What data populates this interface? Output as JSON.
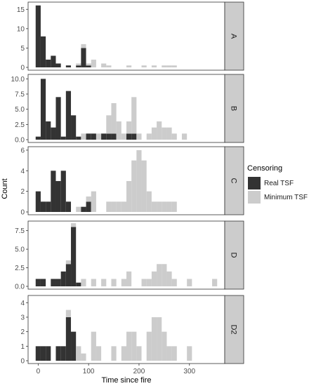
{
  "chart_data": {
    "type": "bar",
    "xlabel": "Time since fire",
    "ylabel": "Count",
    "xlim": [
      -20,
      370
    ],
    "x_ticks": [
      0,
      100,
      200,
      300
    ],
    "bin_width": 10,
    "legend": {
      "title": "Censoring",
      "position": "right",
      "items": [
        {
          "name": "Real TSF",
          "color": "#333333"
        },
        {
          "name": "Minimum TSF",
          "color": "#cccccc"
        }
      ]
    },
    "panels": [
      {
        "label": "A",
        "ylim": [
          0,
          16.5
        ],
        "y_ticks": [
          0,
          5,
          10,
          15
        ],
        "bars": [
          {
            "x": 0,
            "real": 16,
            "min": 0
          },
          {
            "x": 10,
            "real": 8,
            "min": 0
          },
          {
            "x": 20,
            "real": 2,
            "min": 0
          },
          {
            "x": 30,
            "real": 3,
            "min": 0
          },
          {
            "x": 40,
            "real": 1,
            "min": 0
          },
          {
            "x": 60,
            "real": 0.5,
            "min": 0
          },
          {
            "x": 80,
            "real": 0.5,
            "min": 0.5
          },
          {
            "x": 90,
            "real": 5,
            "min": 1
          },
          {
            "x": 100,
            "real": 0.5,
            "min": 0.5
          },
          {
            "x": 110,
            "real": 0,
            "min": 2
          },
          {
            "x": 130,
            "real": 0,
            "min": 1
          },
          {
            "x": 140,
            "real": 0,
            "min": 0.5
          },
          {
            "x": 180,
            "real": 0,
            "min": 0.5
          },
          {
            "x": 210,
            "real": 0,
            "min": 0.5
          },
          {
            "x": 230,
            "real": 0,
            "min": 0.5
          },
          {
            "x": 250,
            "real": 0,
            "min": 0.5
          },
          {
            "x": 260,
            "real": 0,
            "min": 0.5
          },
          {
            "x": 270,
            "real": 0,
            "min": 0.5
          }
        ]
      },
      {
        "label": "B",
        "ylim": [
          0,
          10.5
        ],
        "y_ticks": [
          0.0,
          2.5,
          5.0,
          7.5,
          10.0
        ],
        "bars": [
          {
            "x": 0,
            "real": 0.5,
            "min": 0
          },
          {
            "x": 10,
            "real": 10,
            "min": 0
          },
          {
            "x": 20,
            "real": 3,
            "min": 0
          },
          {
            "x": 30,
            "real": 2,
            "min": 0
          },
          {
            "x": 40,
            "real": 7,
            "min": 0
          },
          {
            "x": 50,
            "real": 0.5,
            "min": 0
          },
          {
            "x": 60,
            "real": 8,
            "min": 0
          },
          {
            "x": 70,
            "real": 4,
            "min": 0
          },
          {
            "x": 80,
            "real": 0.5,
            "min": 0
          },
          {
            "x": 90,
            "real": 0,
            "min": 1
          },
          {
            "x": 100,
            "real": 1,
            "min": 0
          },
          {
            "x": 110,
            "real": 1,
            "min": 0
          },
          {
            "x": 120,
            "real": 0,
            "min": 1
          },
          {
            "x": 130,
            "real": 1,
            "min": 0
          },
          {
            "x": 140,
            "real": 1,
            "min": 3
          },
          {
            "x": 150,
            "real": 1,
            "min": 5
          },
          {
            "x": 160,
            "real": 0,
            "min": 3
          },
          {
            "x": 170,
            "real": 0,
            "min": 1
          },
          {
            "x": 180,
            "real": 1,
            "min": 2
          },
          {
            "x": 190,
            "real": 1,
            "min": 6
          },
          {
            "x": 200,
            "real": 0,
            "min": 1
          },
          {
            "x": 220,
            "real": 0,
            "min": 1
          },
          {
            "x": 230,
            "real": 0,
            "min": 2
          },
          {
            "x": 240,
            "real": 0,
            "min": 3
          },
          {
            "x": 250,
            "real": 0,
            "min": 2
          },
          {
            "x": 260,
            "real": 0,
            "min": 2
          },
          {
            "x": 270,
            "real": 0,
            "min": 1
          },
          {
            "x": 290,
            "real": 0,
            "min": 1
          }
        ]
      },
      {
        "label": "C",
        "ylim": [
          0,
          6.2
        ],
        "y_ticks": [
          0,
          2,
          4,
          6
        ],
        "bars": [
          {
            "x": 0,
            "real": 2,
            "min": 0
          },
          {
            "x": 10,
            "real": 1,
            "min": 0
          },
          {
            "x": 20,
            "real": 1,
            "min": 0
          },
          {
            "x": 30,
            "real": 4,
            "min": 0
          },
          {
            "x": 40,
            "real": 3,
            "min": 0
          },
          {
            "x": 50,
            "real": 4,
            "min": 0
          },
          {
            "x": 60,
            "real": 1,
            "min": 0
          },
          {
            "x": 80,
            "real": 0,
            "min": 0.5
          },
          {
            "x": 90,
            "real": 0.5,
            "min": 0
          },
          {
            "x": 100,
            "real": 1,
            "min": 0.5
          },
          {
            "x": 110,
            "real": 0,
            "min": 2
          },
          {
            "x": 140,
            "real": 0,
            "min": 1
          },
          {
            "x": 150,
            "real": 0,
            "min": 1
          },
          {
            "x": 160,
            "real": 0,
            "min": 1
          },
          {
            "x": 170,
            "real": 0,
            "min": 1
          },
          {
            "x": 180,
            "real": 0,
            "min": 3
          },
          {
            "x": 190,
            "real": 0,
            "min": 5
          },
          {
            "x": 200,
            "real": 0,
            "min": 6
          },
          {
            "x": 210,
            "real": 0,
            "min": 5
          },
          {
            "x": 220,
            "real": 0,
            "min": 2
          },
          {
            "x": 230,
            "real": 0,
            "min": 1
          },
          {
            "x": 240,
            "real": 0,
            "min": 1
          },
          {
            "x": 250,
            "real": 0,
            "min": 1
          },
          {
            "x": 260,
            "real": 0,
            "min": 1
          },
          {
            "x": 270,
            "real": 0,
            "min": 1
          }
        ]
      },
      {
        "label": "D",
        "ylim": [
          0,
          8.6
        ],
        "y_ticks": [
          0.0,
          2.5,
          5.0,
          7.5
        ],
        "bars": [
          {
            "x": 0,
            "real": 1,
            "min": 0
          },
          {
            "x": 10,
            "real": 1,
            "min": 0
          },
          {
            "x": 30,
            "real": 1,
            "min": 0
          },
          {
            "x": 40,
            "real": 1,
            "min": 0
          },
          {
            "x": 50,
            "real": 2,
            "min": 0
          },
          {
            "x": 60,
            "real": 3,
            "min": 0.5
          },
          {
            "x": 70,
            "real": 8,
            "min": 0.5
          },
          {
            "x": 80,
            "real": 0.5,
            "min": 0
          },
          {
            "x": 90,
            "real": 0,
            "min": 1
          },
          {
            "x": 110,
            "real": 0,
            "min": 1
          },
          {
            "x": 130,
            "real": 0,
            "min": 1
          },
          {
            "x": 150,
            "real": 0,
            "min": 1
          },
          {
            "x": 170,
            "real": 0,
            "min": 1
          },
          {
            "x": 180,
            "real": 0,
            "min": 2
          },
          {
            "x": 210,
            "real": 0,
            "min": 1
          },
          {
            "x": 220,
            "real": 0,
            "min": 1
          },
          {
            "x": 230,
            "real": 0,
            "min": 2
          },
          {
            "x": 240,
            "real": 0,
            "min": 3
          },
          {
            "x": 250,
            "real": 0,
            "min": 3
          },
          {
            "x": 260,
            "real": 0,
            "min": 2
          },
          {
            "x": 270,
            "real": 0,
            "min": 1
          },
          {
            "x": 300,
            "real": 0,
            "min": 1
          },
          {
            "x": 350,
            "real": 0,
            "min": 1
          }
        ]
      },
      {
        "label": "D2",
        "ylim": [
          0,
          4.4
        ],
        "y_ticks": [
          0,
          1,
          2,
          3,
          4
        ],
        "bars": [
          {
            "x": 0,
            "real": 1,
            "min": 0
          },
          {
            "x": 10,
            "real": 1,
            "min": 0
          },
          {
            "x": 20,
            "real": 1,
            "min": 0
          },
          {
            "x": 40,
            "real": 1,
            "min": 0
          },
          {
            "x": 50,
            "real": 1,
            "min": 0
          },
          {
            "x": 60,
            "real": 3,
            "min": 0.5
          },
          {
            "x": 70,
            "real": 2,
            "min": 0
          },
          {
            "x": 80,
            "real": 0,
            "min": 1
          },
          {
            "x": 90,
            "real": 0,
            "min": 0.5
          },
          {
            "x": 110,
            "real": 0,
            "min": 2
          },
          {
            "x": 120,
            "real": 0,
            "min": 1
          },
          {
            "x": 150,
            "real": 0,
            "min": 1
          },
          {
            "x": 170,
            "real": 0,
            "min": 1
          },
          {
            "x": 180,
            "real": 0,
            "min": 2
          },
          {
            "x": 190,
            "real": 0,
            "min": 2
          },
          {
            "x": 200,
            "real": 0,
            "min": 1
          },
          {
            "x": 220,
            "real": 0,
            "min": 2
          },
          {
            "x": 230,
            "real": 0,
            "min": 3
          },
          {
            "x": 240,
            "real": 0,
            "min": 3
          },
          {
            "x": 250,
            "real": 0,
            "min": 2
          },
          {
            "x": 260,
            "real": 0,
            "min": 1
          },
          {
            "x": 270,
            "real": 0,
            "min": 1
          },
          {
            "x": 300,
            "real": 0,
            "min": 1
          }
        ]
      }
    ]
  }
}
